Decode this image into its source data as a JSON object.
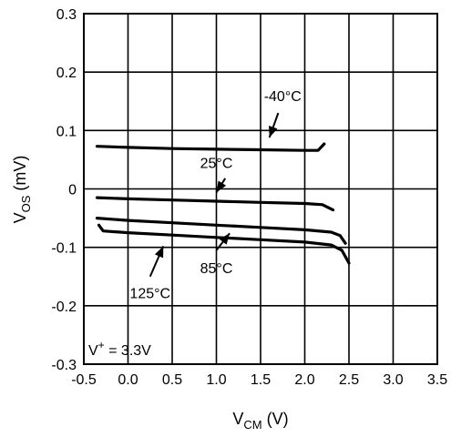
{
  "chart_data": {
    "type": "line",
    "xlim": [
      -0.5,
      3.5
    ],
    "ylim": [
      -0.3,
      0.3
    ],
    "x_ticks": [
      "-0.5",
      "0.0",
      "0.5",
      "1.0",
      "1.5",
      "2.0",
      "2.5",
      "3.0",
      "3.5"
    ],
    "y_ticks": [
      "0.3",
      "0.2",
      "0.1",
      "0",
      "-0.1",
      "-0.2",
      "-0.3"
    ],
    "x_tick_values": [
      -0.5,
      0.0,
      0.5,
      1.0,
      1.5,
      2.0,
      2.5,
      3.0,
      3.5
    ],
    "y_tick_values": [
      0.3,
      0.2,
      0.1,
      0,
      -0.1,
      -0.2,
      -0.3
    ],
    "xlabel": {
      "main": "V",
      "sub": "CM",
      "unit": " (V)"
    },
    "ylabel": {
      "main": "V",
      "sub": "OS",
      "unit": " (mV)"
    },
    "grid": true,
    "legend": "none",
    "condition_note": {
      "pre": "V",
      "sup": "+",
      "post": " = 3.3V"
    },
    "series": [
      {
        "name": "-40°C",
        "x": [
          -0.35,
          0.0,
          0.5,
          1.0,
          1.5,
          2.0,
          2.15,
          2.22
        ],
        "y": [
          0.073,
          0.071,
          0.069,
          0.068,
          0.067,
          0.066,
          0.066,
          0.077
        ]
      },
      {
        "name": "25°C",
        "x": [
          -0.35,
          0.0,
          0.5,
          1.0,
          1.5,
          2.0,
          2.2,
          2.32
        ],
        "y": [
          -0.015,
          -0.017,
          -0.019,
          -0.021,
          -0.023,
          -0.025,
          -0.027,
          -0.036
        ]
      },
      {
        "name": "85°C",
        "x": [
          -0.35,
          0.0,
          0.5,
          1.0,
          1.5,
          2.0,
          2.3,
          2.4,
          2.46
        ],
        "y": [
          -0.05,
          -0.054,
          -0.058,
          -0.062,
          -0.066,
          -0.07,
          -0.074,
          -0.08,
          -0.093
        ]
      },
      {
        "name": "125°C",
        "x": [
          -0.33,
          -0.28,
          0.0,
          0.5,
          1.0,
          1.5,
          2.0,
          2.3,
          2.42,
          2.5
        ],
        "y": [
          -0.062,
          -0.072,
          -0.075,
          -0.079,
          -0.083,
          -0.087,
          -0.091,
          -0.096,
          -0.105,
          -0.127
        ]
      }
    ],
    "annotations": [
      {
        "text": "-40°C",
        "label_x": 1.75,
        "label_y": 0.16,
        "arrow_from": [
          1.7,
          0.13
        ],
        "arrow_to": [
          1.6,
          0.088
        ]
      },
      {
        "text": "25°C",
        "label_x": 1.0,
        "label_y": 0.045,
        "arrow_from": [
          1.1,
          0.018
        ],
        "arrow_to": [
          1.0,
          -0.006
        ]
      },
      {
        "text": "85°C",
        "label_x": 1.0,
        "label_y": -0.135,
        "arrow_from": [
          1.0,
          -0.105
        ],
        "arrow_to": [
          1.15,
          -0.076
        ]
      },
      {
        "text": "125°C",
        "label_x": 0.25,
        "label_y": -0.178,
        "arrow_from": [
          0.25,
          -0.15
        ],
        "arrow_to": [
          0.4,
          -0.098
        ]
      }
    ]
  }
}
